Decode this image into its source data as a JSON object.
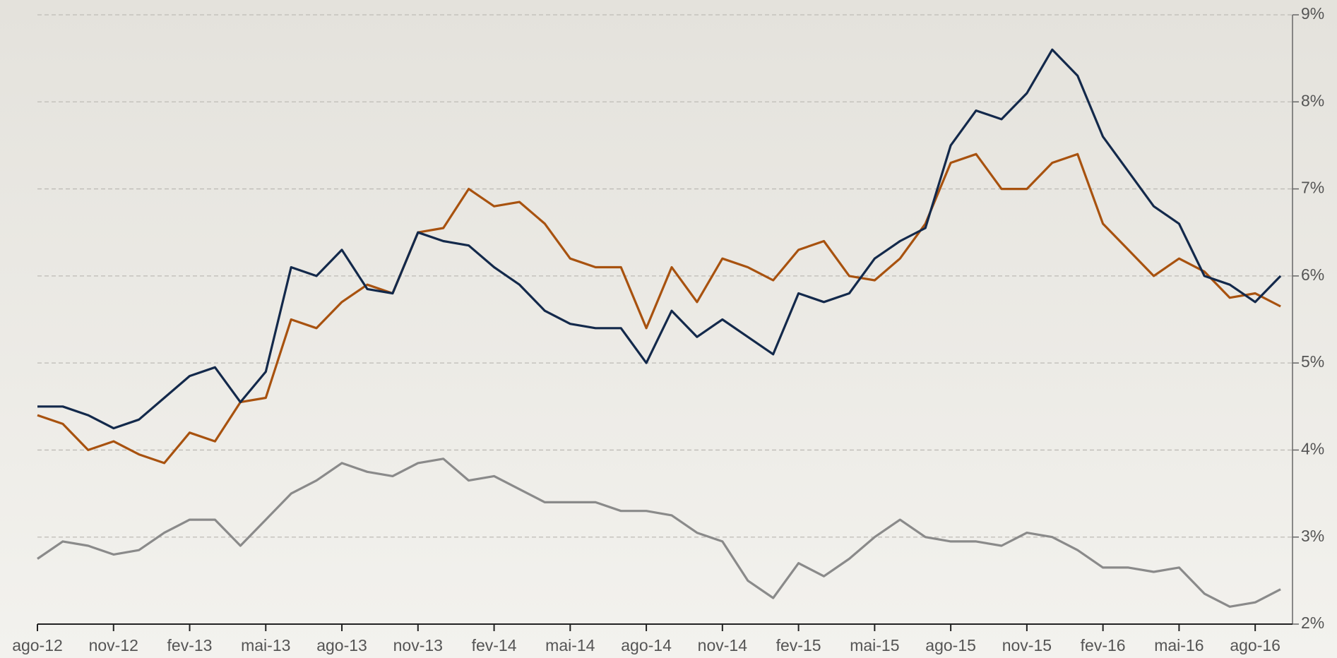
{
  "chart_data": {
    "type": "line",
    "categories": [
      "ago-12",
      null,
      null,
      "nov-12",
      null,
      null,
      "fev-13",
      null,
      null,
      "mai-13",
      null,
      null,
      "ago-13",
      null,
      null,
      "nov-13",
      null,
      null,
      "fev-14",
      null,
      null,
      "mai-14",
      null,
      null,
      "ago-14",
      null,
      null,
      "nov-14",
      null,
      null,
      "fev-15",
      null,
      null,
      "mai-15",
      null,
      null,
      "ago-15",
      null,
      null,
      "nov-15",
      null,
      null,
      "fev-16",
      null,
      null,
      "mai-16",
      null,
      null,
      "ago-16",
      null
    ],
    "series": [
      {
        "color": "#13294b",
        "values": [
          4.5,
          4.5,
          4.4,
          4.25,
          4.35,
          4.6,
          4.85,
          4.95,
          4.55,
          4.9,
          6.1,
          6.0,
          6.3,
          5.85,
          5.8,
          6.5,
          6.4,
          6.35,
          6.1,
          5.9,
          5.6,
          5.45,
          5.4,
          5.4,
          5.0,
          5.6,
          5.3,
          5.5,
          5.3,
          5.1,
          5.8,
          5.7,
          5.8,
          6.2,
          6.4,
          6.55,
          7.5,
          7.9,
          7.8,
          8.1,
          8.6,
          8.3,
          7.6,
          7.2,
          6.8,
          6.6,
          6.0,
          5.9,
          5.7,
          6.0
        ]
      },
      {
        "color": "#a8520f",
        "values": [
          4.4,
          4.3,
          4.0,
          4.1,
          3.95,
          3.85,
          4.2,
          4.1,
          4.55,
          4.6,
          5.5,
          5.4,
          5.7,
          5.9,
          5.8,
          6.5,
          6.55,
          7.0,
          6.8,
          6.85,
          6.6,
          6.2,
          6.1,
          6.1,
          5.4,
          6.1,
          5.7,
          6.2,
          6.1,
          5.95,
          6.3,
          6.4,
          6.0,
          5.95,
          6.2,
          6.6,
          7.3,
          7.4,
          7.0,
          7.0,
          7.3,
          7.4,
          6.6,
          6.3,
          6.0,
          6.2,
          6.05,
          5.75,
          5.8,
          5.65
        ]
      },
      {
        "color": "#8a8a8a",
        "values": [
          2.75,
          2.95,
          2.9,
          2.8,
          2.85,
          3.05,
          3.2,
          3.2,
          2.9,
          3.2,
          3.5,
          3.65,
          3.85,
          3.75,
          3.7,
          3.85,
          3.9,
          3.65,
          3.7,
          3.55,
          3.4,
          3.4,
          3.4,
          3.3,
          3.3,
          3.25,
          3.05,
          2.95,
          2.5,
          2.3,
          2.7,
          2.55,
          2.75,
          3.0,
          3.2,
          3.0,
          2.95,
          2.95,
          2.9,
          3.05,
          3.0,
          2.85,
          2.65,
          2.65,
          2.6,
          2.65,
          2.35,
          2.2,
          2.25,
          2.4
        ]
      }
    ],
    "ylim": [
      2,
      9
    ],
    "yticks": [
      {
        "value": 2,
        "label": "2%"
      },
      {
        "value": 3,
        "label": "3%"
      },
      {
        "value": 4,
        "label": "4%"
      },
      {
        "value": 5,
        "label": "5%"
      },
      {
        "value": 6,
        "label": "6%"
      },
      {
        "value": 7,
        "label": "7%"
      },
      {
        "value": 8,
        "label": "8%"
      },
      {
        "value": 9,
        "label": "9%"
      }
    ],
    "grid": true
  }
}
